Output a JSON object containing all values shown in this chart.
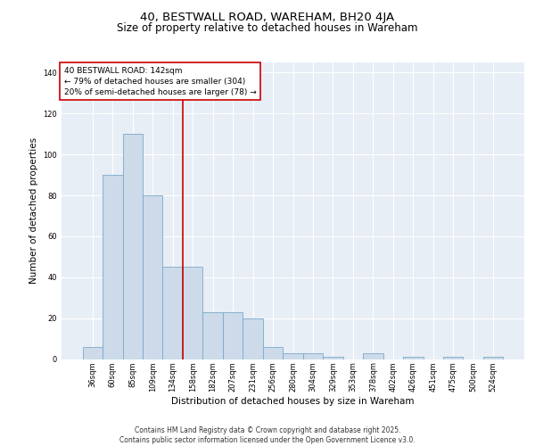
{
  "title": "40, BESTWALL ROAD, WAREHAM, BH20 4JA",
  "subtitle": "Size of property relative to detached houses in Wareham",
  "xlabel": "Distribution of detached houses by size in Wareham",
  "ylabel": "Number of detached properties",
  "categories": [
    "36sqm",
    "60sqm",
    "85sqm",
    "109sqm",
    "134sqm",
    "158sqm",
    "182sqm",
    "207sqm",
    "231sqm",
    "256sqm",
    "280sqm",
    "304sqm",
    "329sqm",
    "353sqm",
    "378sqm",
    "402sqm",
    "426sqm",
    "451sqm",
    "475sqm",
    "500sqm",
    "524sqm"
  ],
  "values": [
    6,
    90,
    110,
    80,
    45,
    45,
    23,
    23,
    20,
    6,
    3,
    3,
    1,
    0,
    3,
    0,
    1,
    0,
    1,
    0,
    1
  ],
  "bar_color": "#ccdaea",
  "bar_edge_color": "#7aaac8",
  "background_color": "#e8eef5",
  "grid_color": "#ffffff",
  "annotation_box_text": "40 BESTWALL ROAD: 142sqm\n← 79% of detached houses are smaller (304)\n20% of semi-detached houses are larger (78) →",
  "annotation_box_color": "#cc0000",
  "vline_color": "#cc0000",
  "vline_xindex": 4,
  "ylim": [
    0,
    145
  ],
  "yticks": [
    0,
    20,
    40,
    60,
    80,
    100,
    120,
    140
  ],
  "footer_line1": "Contains HM Land Registry data © Crown copyright and database right 2025.",
  "footer_line2": "Contains public sector information licensed under the Open Government Licence v3.0.",
  "title_fontsize": 9.5,
  "subtitle_fontsize": 8.5,
  "xlabel_fontsize": 7.5,
  "ylabel_fontsize": 7.5,
  "tick_fontsize": 6.0,
  "annotation_fontsize": 6.5,
  "footer_fontsize": 5.5
}
